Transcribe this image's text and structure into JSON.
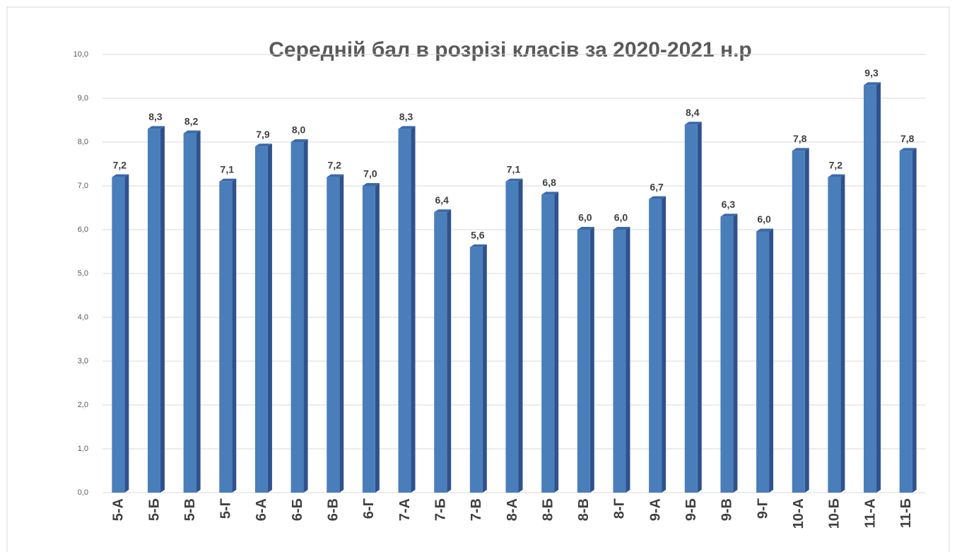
{
  "chart_data": {
    "type": "bar",
    "title": "Середній бал в розрізі класів за 2020-2021 н.р",
    "categories": [
      "5-А",
      "5-Б",
      "5-В",
      "5-Г",
      "6-А",
      "6-Б",
      "6-В",
      "6-Г",
      "7-А",
      "7-Б",
      "7-В",
      "8-А",
      "8-Б",
      "8-В",
      "8-Г",
      "9-А",
      "9-Б",
      "9-В",
      "9-Г",
      "10-А",
      "10-Б",
      "11-А",
      "11-Б"
    ],
    "values": [
      7.2,
      8.3,
      8.2,
      7.1,
      7.9,
      8.0,
      7.2,
      7.0,
      8.3,
      6.4,
      5.6,
      7.1,
      6.8,
      6.0,
      6.0,
      6.7,
      8.4,
      6.3,
      5.96,
      7.8,
      7.2,
      9.3,
      7.8
    ],
    "value_labels": [
      "7,2",
      "8,3",
      "8,2",
      "7,1",
      "7,9",
      "8,0",
      "7,2",
      "7,0",
      "8,3",
      "6,4",
      "5,6",
      "7,1",
      "6,8",
      "6,0",
      "6,0",
      "6,7",
      "8,4",
      "6,3",
      "6,0",
      "7,8",
      "7,2",
      "9,3",
      "7,8"
    ],
    "color": "#4a7ebb",
    "ylim": [
      0,
      10
    ],
    "yticks": [
      {
        "value": 0,
        "label": "0,0"
      },
      {
        "value": 1,
        "label": "1,0"
      },
      {
        "value": 2,
        "label": "2,0"
      },
      {
        "value": 3,
        "label": "3,0"
      },
      {
        "value": 4,
        "label": "4,0"
      },
      {
        "value": 5,
        "label": "5,0"
      },
      {
        "value": 6,
        "label": "6,0"
      },
      {
        "value": 7,
        "label": "7,0"
      },
      {
        "value": 8,
        "label": "8,0"
      },
      {
        "value": 9,
        "label": "9,0"
      },
      {
        "value": 10,
        "label": "10,0"
      }
    ],
    "grid": true
  }
}
